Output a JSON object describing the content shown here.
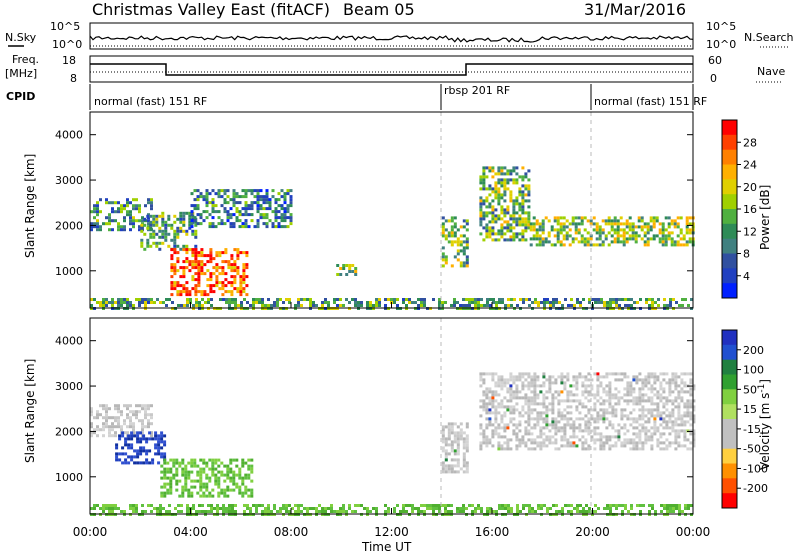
{
  "header": {
    "title": "Christmas Valley East (fitACF)",
    "beam": "Beam 05",
    "date": "31/Mar/2016"
  },
  "strips": {
    "nsky_label": "N.Sky",
    "nsky_ticks_left": [
      "10^5",
      "10^0"
    ],
    "nsky_ticks_right": [
      "10^5",
      "10^0"
    ],
    "nsearch_label": "N.Search",
    "freq_label": "Freq.",
    "freq_unit": "[MHz]",
    "freq_ticks": [
      "18",
      "8"
    ],
    "nave_ticks": [
      "60",
      "0"
    ],
    "nave_label": "Nave",
    "cpid_label": "CPID",
    "cpid_segments": [
      {
        "label": "normal (fast) 151 RF",
        "start": 0,
        "end": 14.0
      },
      {
        "label": "rbsp 201 RF",
        "start": 14.0,
        "end": 20.0
      },
      {
        "label": "normal (fast) 151 RF",
        "start": 20.0,
        "end": 24.0
      }
    ]
  },
  "chart_data": [
    {
      "type": "heatmap",
      "name": "power",
      "ylabel": "Slant Range [km]",
      "yticks": [
        "4000",
        "3000",
        "2000",
        "1000"
      ],
      "ylim": [
        180,
        4500
      ],
      "xlim": [
        0,
        24
      ],
      "colorbar": {
        "label": "Power [dB]",
        "ticks": [
          "28",
          "24",
          "20",
          "16",
          "12",
          "8",
          "4"
        ],
        "colors": [
          "#ff0000",
          "#ff4000",
          "#ff8000",
          "#ffb000",
          "#e0d000",
          "#a0d000",
          "#50b040",
          "#2e8b57",
          "#408080",
          "#3050a0",
          "#2040c0",
          "#0020ff"
        ]
      },
      "echo_regions": [
        {
          "x": [
            0.0,
            2.5
          ],
          "y": [
            1900,
            2600
          ],
          "level": 0.35
        },
        {
          "x": [
            2.0,
            4.2
          ],
          "y": [
            1500,
            2300
          ],
          "level": 0.4
        },
        {
          "x": [
            3.2,
            6.2
          ],
          "y": [
            500,
            1500
          ],
          "level": 0.85
        },
        {
          "x": [
            4.0,
            8.0
          ],
          "y": [
            2000,
            2800
          ],
          "level": 0.3
        },
        {
          "x": [
            9.8,
            10.6
          ],
          "y": [
            950,
            1150
          ],
          "level": 0.5
        },
        {
          "x": [
            14.0,
            15.0
          ],
          "y": [
            1100,
            2200
          ],
          "level": 0.45
        },
        {
          "x": [
            15.5,
            17.5
          ],
          "y": [
            1700,
            3300
          ],
          "level": 0.45
        },
        {
          "x": [
            17.5,
            24.0
          ],
          "y": [
            1600,
            2200
          ],
          "level": 0.5
        },
        {
          "x": [
            0.0,
            24.0
          ],
          "y": [
            180,
            400
          ],
          "level": 0.4
        }
      ]
    },
    {
      "type": "heatmap",
      "name": "velocity",
      "xlabel": "Time UT",
      "xticks": [
        "00:00",
        "04:00",
        "08:00",
        "12:00",
        "16:00",
        "20:00",
        "00:00"
      ],
      "ylabel": "Slant Range [km]",
      "yticks": [
        "4000",
        "3000",
        "2000",
        "1000"
      ],
      "ylim": [
        180,
        4500
      ],
      "xlim": [
        0,
        24
      ],
      "colorbar": {
        "label": "Velocity [m s-1]",
        "ticks": [
          "200",
          "100",
          "50",
          "15",
          "-15",
          "-50",
          "-100",
          "-200"
        ],
        "colors": [
          "#2030c0",
          "#2050d0",
          "#208040",
          "#30a030",
          "#80d040",
          "#b0e060",
          "#c0c0c0",
          "#c0c0c0",
          "#ffd040",
          "#ff9000",
          "#ff5000",
          "#ff0000"
        ]
      },
      "echo_regions": [
        {
          "x": [
            0.0,
            2.5
          ],
          "y": [
            1900,
            2600
          ],
          "v": "gray"
        },
        {
          "x": [
            1.0,
            3.0
          ],
          "y": [
            1300,
            2000
          ],
          "v": "blue"
        },
        {
          "x": [
            2.8,
            6.5
          ],
          "y": [
            600,
            1400
          ],
          "v": "green"
        },
        {
          "x": [
            14.0,
            15.0
          ],
          "y": [
            1100,
            2200
          ],
          "v": "gray"
        },
        {
          "x": [
            15.5,
            24.0
          ],
          "y": [
            1600,
            3300
          ],
          "v": "gray"
        },
        {
          "x": [
            0.0,
            24.0
          ],
          "y": [
            180,
            400
          ],
          "v": "green"
        }
      ]
    }
  ]
}
